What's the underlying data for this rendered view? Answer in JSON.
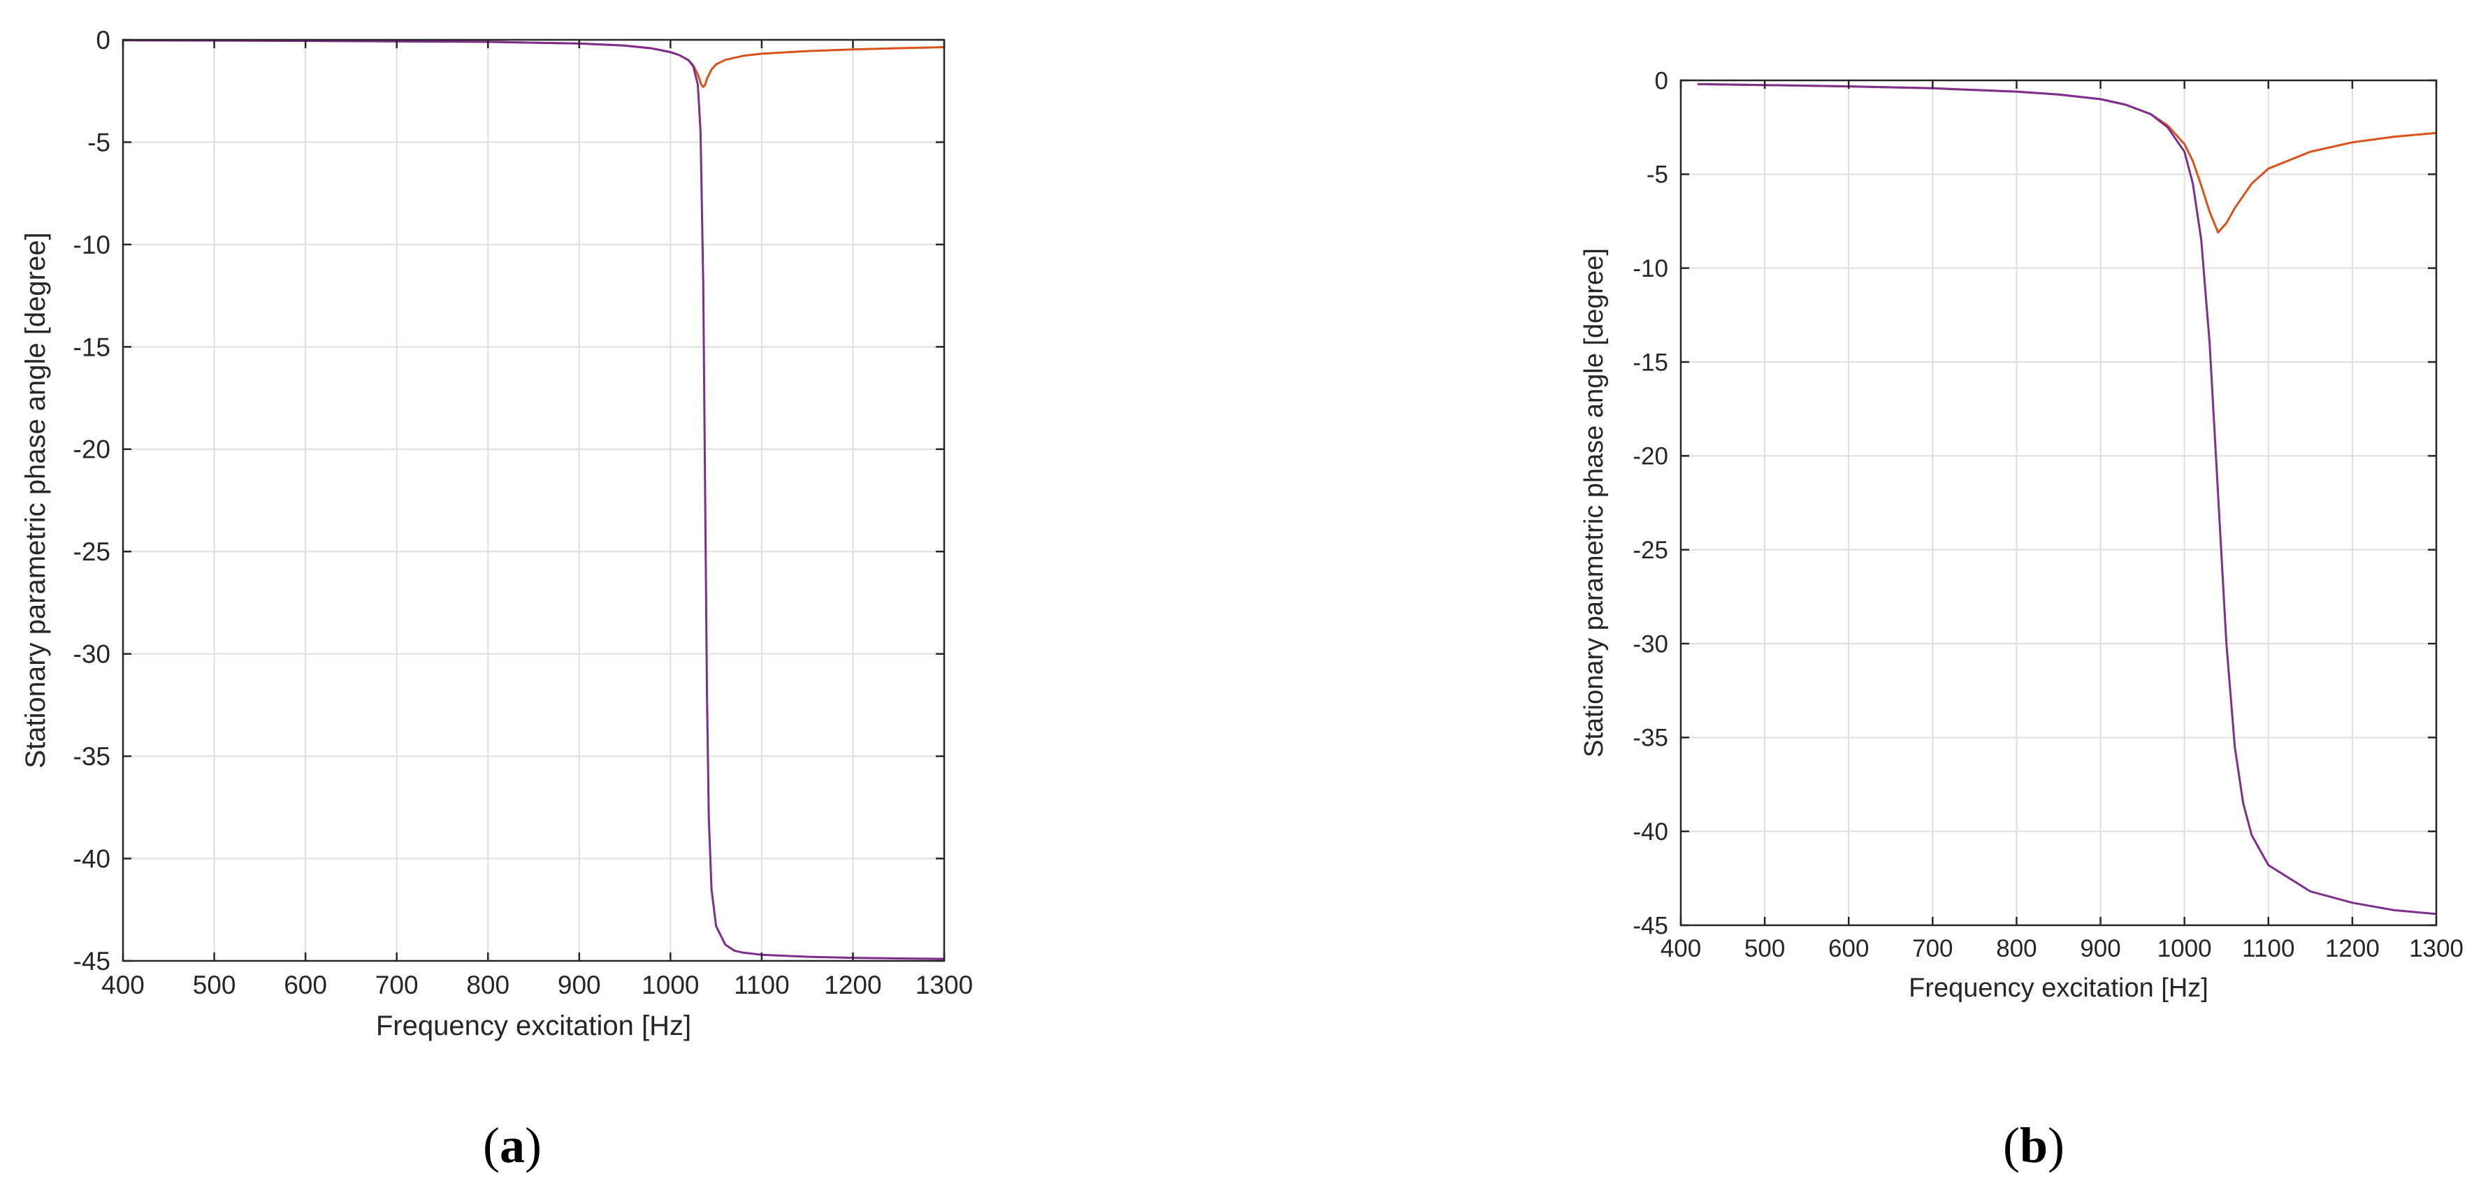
{
  "colors": {
    "series_1": "#D95319",
    "series_2": "#7E2F8E",
    "grid": "#DFDFDF",
    "axes": "#262626"
  },
  "chart_data": [
    {
      "type": "line",
      "panel_label": "a",
      "xlabel": "Frequency excitation [Hz]",
      "ylabel": "Stationary parametric phase angle [degree]",
      "xlim": [
        400,
        1300
      ],
      "ylim": [
        -45,
        0
      ],
      "xticks": [
        400,
        500,
        600,
        700,
        800,
        900,
        1000,
        1100,
        1200,
        1300
      ],
      "yticks": [
        0,
        -5,
        -10,
        -15,
        -20,
        -25,
        -30,
        -35,
        -40,
        -45
      ],
      "grid": true,
      "series": [
        {
          "color": "series_1",
          "x": [
            400,
            600,
            800,
            900,
            950,
            980,
            1000,
            1010,
            1020,
            1025,
            1030,
            1034,
            1036,
            1038,
            1040,
            1045,
            1050,
            1060,
            1080,
            1100,
            1150,
            1200,
            1250,
            1300
          ],
          "y": [
            -0.02,
            -0.05,
            -0.1,
            -0.18,
            -0.28,
            -0.42,
            -0.6,
            -0.75,
            -1.0,
            -1.25,
            -1.7,
            -2.2,
            -2.3,
            -2.2,
            -1.9,
            -1.45,
            -1.2,
            -0.98,
            -0.78,
            -0.68,
            -0.55,
            -0.47,
            -0.41,
            -0.36
          ]
        },
        {
          "color": "series_2",
          "x": [
            400,
            600,
            800,
            900,
            950,
            980,
            1000,
            1010,
            1020,
            1025,
            1030,
            1033,
            1036,
            1038,
            1040,
            1042,
            1045,
            1050,
            1060,
            1070,
            1080,
            1100,
            1150,
            1200,
            1250,
            1300
          ],
          "y": [
            -0.02,
            -0.05,
            -0.1,
            -0.18,
            -0.28,
            -0.42,
            -0.6,
            -0.75,
            -1.0,
            -1.3,
            -2.2,
            -4.5,
            -12,
            -22,
            -32,
            -38,
            -41.5,
            -43.3,
            -44.2,
            -44.5,
            -44.6,
            -44.7,
            -44.8,
            -44.85,
            -44.88,
            -44.9
          ]
        }
      ]
    },
    {
      "type": "line",
      "panel_label": "b",
      "xlabel": "Frequency excitation [Hz]",
      "ylabel": "Stationary parametric phase angle [degree]",
      "xlim": [
        400,
        1300
      ],
      "ylim": [
        -45,
        0
      ],
      "xticks": [
        400,
        500,
        600,
        700,
        800,
        900,
        1000,
        1100,
        1200,
        1300
      ],
      "yticks": [
        0,
        -5,
        -10,
        -15,
        -20,
        -25,
        -30,
        -35,
        -40,
        -45
      ],
      "grid": true,
      "series": [
        {
          "color": "series_1",
          "x": [
            420,
            500,
            600,
            700,
            800,
            850,
            900,
            930,
            960,
            980,
            1000,
            1010,
            1020,
            1030,
            1040,
            1050,
            1060,
            1080,
            1100,
            1150,
            1200,
            1250,
            1300
          ],
          "y": [
            -0.2,
            -0.25,
            -0.32,
            -0.42,
            -0.6,
            -0.75,
            -1.0,
            -1.3,
            -1.8,
            -2.4,
            -3.4,
            -4.3,
            -5.6,
            -7.0,
            -8.1,
            -7.6,
            -6.8,
            -5.5,
            -4.7,
            -3.8,
            -3.3,
            -3.0,
            -2.8
          ]
        },
        {
          "color": "series_2",
          "x": [
            420,
            500,
            600,
            700,
            800,
            850,
            900,
            930,
            960,
            980,
            1000,
            1010,
            1020,
            1030,
            1040,
            1050,
            1060,
            1070,
            1080,
            1100,
            1150,
            1200,
            1250,
            1300
          ],
          "y": [
            -0.2,
            -0.25,
            -0.32,
            -0.42,
            -0.6,
            -0.75,
            -1.0,
            -1.3,
            -1.8,
            -2.5,
            -3.8,
            -5.5,
            -8.5,
            -14,
            -22,
            -30,
            -35.5,
            -38.5,
            -40.2,
            -41.8,
            -43.2,
            -43.8,
            -44.2,
            -44.4
          ]
        }
      ]
    }
  ]
}
